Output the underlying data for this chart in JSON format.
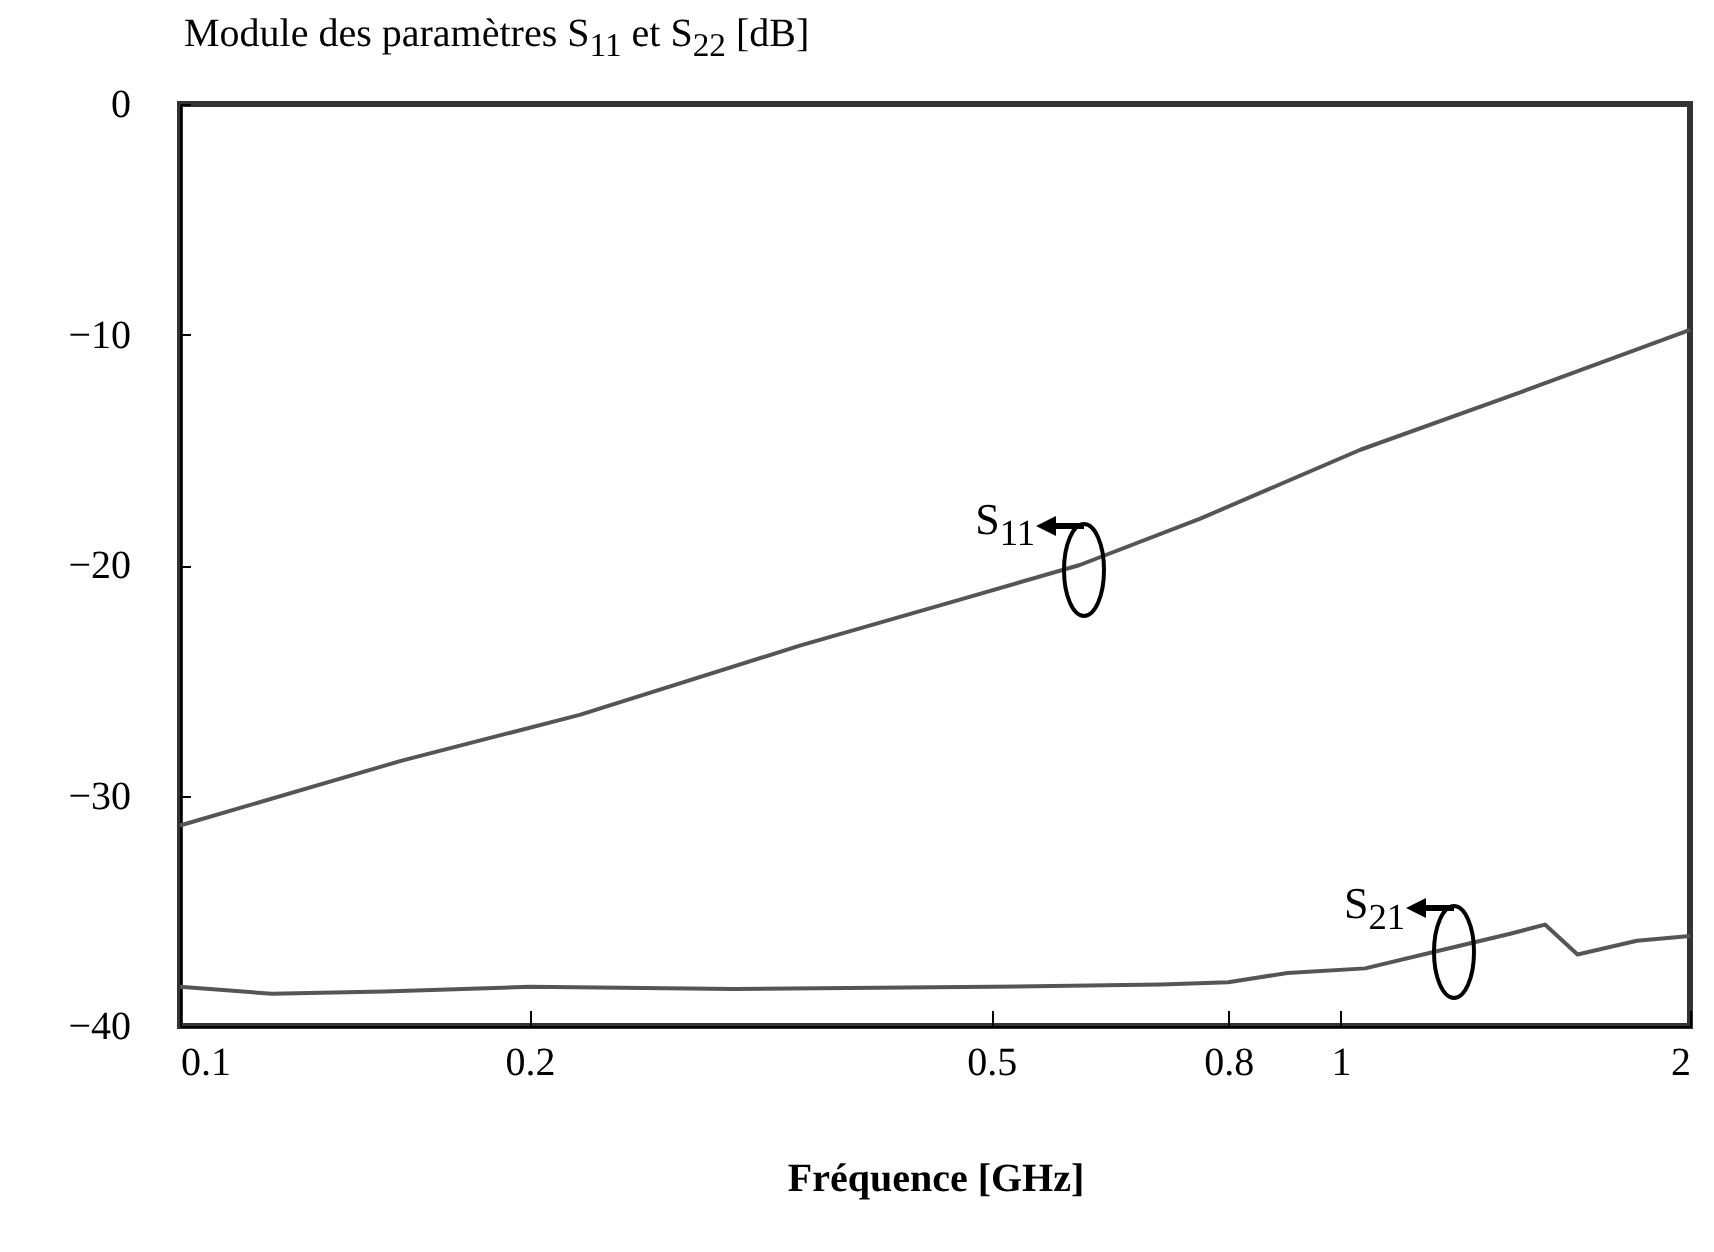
{
  "chart_data": {
    "type": "line",
    "ylabel": "Module des paramètres S$_{11}$ et S$_{22}$ [dB]",
    "xlabel": "Fréquence [GHz]",
    "log": "x",
    "xlim": [
      0.1,
      2
    ],
    "xticks": [
      0.1,
      0.2,
      0.5,
      0.8,
      1,
      2
    ],
    "ylim": [
      -40,
      0
    ],
    "yticks": [
      0,
      -10,
      -20,
      -30,
      -40
    ],
    "grid": false,
    "legend": false,
    "line_style": "solid",
    "series": [
      {
        "color": "#555555",
        "x": [
          0.1,
          0.155,
          0.221,
          0.342,
          0.47,
          0.596,
          0.756,
          1.04,
          1.43,
          2
        ],
        "values": [
          -31.3,
          -28.5,
          -26.5,
          -23.5,
          -21.5,
          -20,
          -18,
          -15,
          -12.5,
          -9.8
        ]
      },
      {
        "color": "#555555",
        "x": [
          0.1,
          0.12,
          0.15,
          0.2,
          0.3,
          0.5,
          0.7,
          0.8,
          0.9,
          1.05,
          1.2,
          1.4,
          1.5,
          1.6,
          1.8,
          2
        ],
        "values": [
          -38.3,
          -38.6,
          -38.5,
          -38.3,
          -38.4,
          -38.3,
          -38.2,
          -38.1,
          -37.7,
          -37.5,
          -36.8,
          -36,
          -35.6,
          -36.9,
          -36.3,
          -36.1
        ]
      }
    ],
    "annotations": [
      {
        "text": "S$_{11}$",
        "x": 0.6,
        "y": -20
      },
      {
        "text": "S$_{21}$",
        "x": 1.25,
        "y": -36.6
      }
    ]
  }
}
